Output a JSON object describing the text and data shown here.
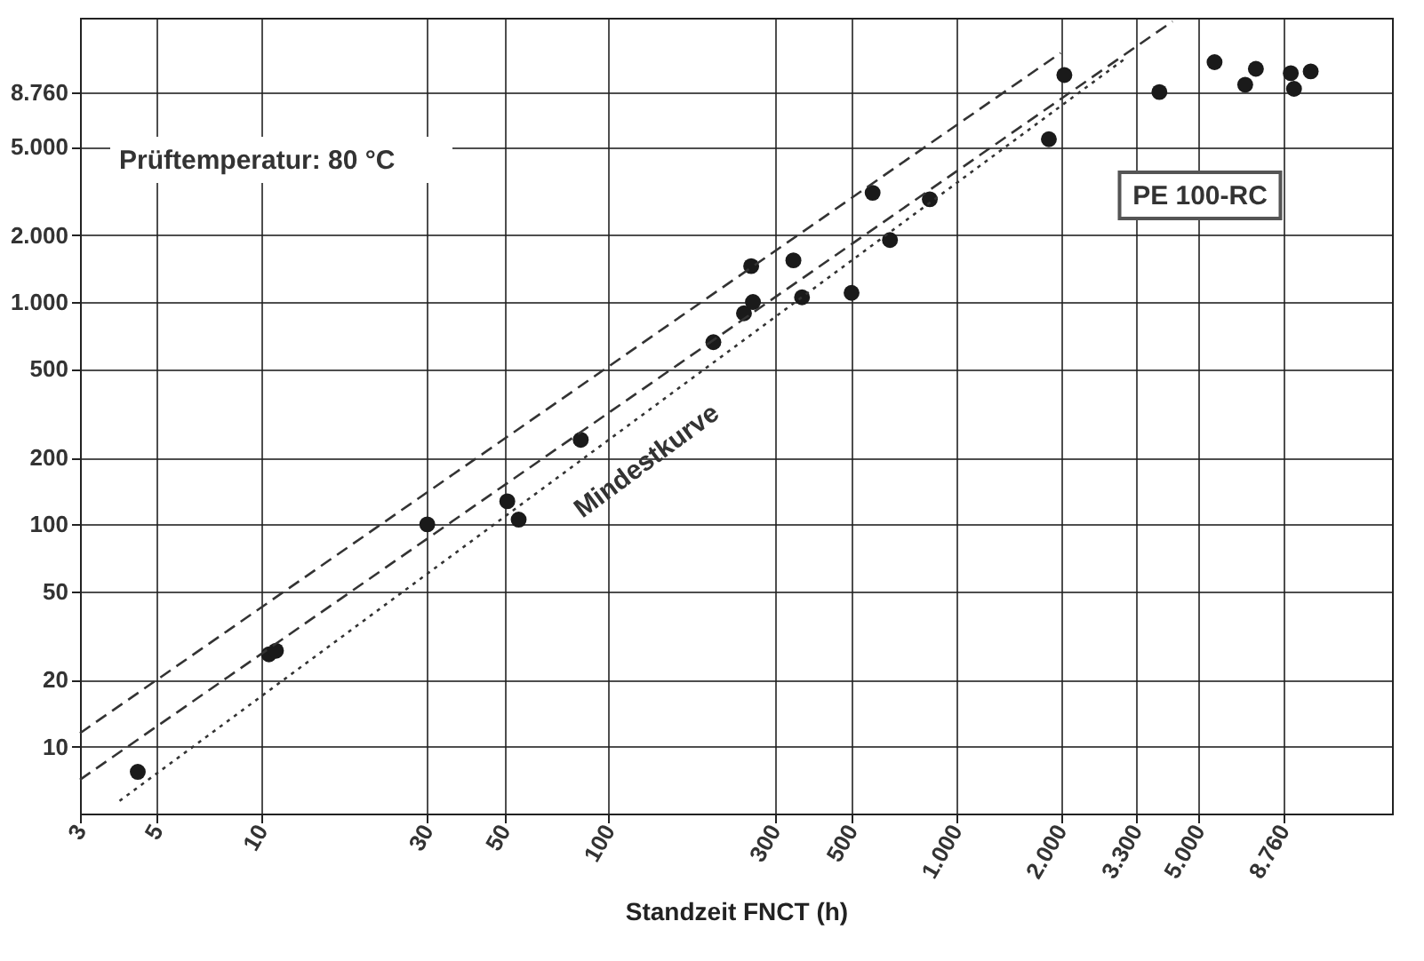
{
  "chart_data": {
    "type": "scatter",
    "xlabel": "Standzeit FNCT (h)",
    "annotations": [
      "Prüftemperatur: 80 °C",
      "PE 100-RC"
    ],
    "xlim": [
      3,
      18000
    ],
    "ylim": [
      5,
      19000
    ],
    "log": "xy",
    "grid": true,
    "xticks": [
      3,
      5,
      10,
      30,
      50,
      100,
      300,
      500,
      {
        "value": 1000,
        "label": "1.000"
      },
      {
        "value": 2000,
        "label": "2.000"
      },
      {
        "value": 3300,
        "label": "3.300"
      },
      {
        "value": 5000,
        "label": "5.000"
      },
      {
        "value": 8760,
        "label": "8.760"
      }
    ],
    "yticks": [
      10,
      20,
      50,
      100,
      200,
      500,
      {
        "value": 1000,
        "label": "1.000"
      },
      {
        "value": 2000,
        "label": "2.000"
      },
      {
        "value": 5000,
        "label": "5.000"
      },
      {
        "value": 8760,
        "label": "8.760"
      }
    ],
    "series": [
      {
        "marker": "circle",
        "color": "#1a1a1a",
        "x": [
          4.4,
          10.5,
          11,
          30,
          51,
          55,
          83,
          200,
          245,
          260,
          257,
          340,
          360,
          500,
          575,
          645,
          840,
          1850,
          2050,
          3850,
          5550,
          7300,
          6800,
          9200,
          9400,
          10500
        ],
        "values": [
          7.7,
          26,
          27,
          100,
          127,
          105,
          240,
          660,
          890,
          1000,
          1450,
          1540,
          1050,
          1100,
          3100,
          1900,
          2900,
          5400,
          10500,
          8800,
          12000,
          11200,
          9500,
          10700,
          9100,
          10900
        ]
      },
      {
        "type": "line",
        "color": "#333333",
        "line_style": "dashed",
        "x": [
          3,
          2000
        ],
        "values": [
          11.5,
          13200
        ]
      },
      {
        "type": "line",
        "color": "#333333",
        "line_style": "dashed",
        "x": [
          3,
          4200
        ],
        "values": [
          7.1,
          18300
        ]
      },
      {
        "type": "line",
        "name": "Mindestkurve",
        "color": "#333333",
        "line_style": "dotted",
        "x": [
          3.9,
          3100
        ],
        "values": [
          5.7,
          12600
        ]
      }
    ]
  }
}
